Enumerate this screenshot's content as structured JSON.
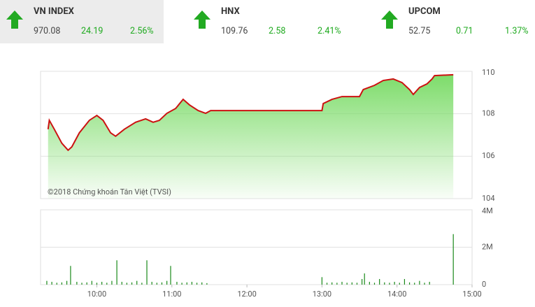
{
  "indices": [
    {
      "name": "VN INDEX",
      "value": "970.08",
      "change": "24.19",
      "percent": "2.56%"
    },
    {
      "name": "HNX",
      "value": "109.76",
      "change": "2.58",
      "percent": "2.41%"
    },
    {
      "name": "UPCOM",
      "value": "52.75",
      "change": "0.71",
      "percent": "1.37%"
    }
  ],
  "chart_data": [
    {
      "type": "line",
      "annotation": "©2018 Chứng khoán Tân Việt (TVSI)",
      "color": "#cc1111",
      "fill": "#7ddc6a",
      "x": [
        561,
        562,
        566,
        572,
        577,
        580,
        586,
        594,
        600,
        605,
        611,
        615,
        622,
        631,
        639,
        645,
        650,
        656,
        663,
        669,
        674,
        681,
        687,
        691,
        780,
        781,
        788,
        796,
        810,
        813,
        822,
        829,
        837,
        844,
        850,
        853,
        858,
        864,
        868,
        870,
        885
      ],
      "values": [
        107.27,
        107.69,
        107.27,
        106.61,
        106.28,
        106.44,
        107.1,
        107.69,
        107.92,
        107.69,
        107.1,
        106.94,
        107.27,
        107.6,
        107.76,
        107.6,
        107.69,
        108.02,
        108.25,
        108.68,
        108.42,
        108.15,
        108.02,
        108.15,
        108.15,
        108.48,
        108.68,
        108.81,
        108.81,
        109.14,
        109.34,
        109.57,
        109.64,
        109.47,
        109.14,
        108.91,
        109.24,
        109.41,
        109.64,
        109.8,
        109.84
      ],
      "xlim": [
        555,
        900
      ],
      "ylim": [
        104,
        110
      ],
      "yticks": [
        104,
        106,
        108,
        110
      ],
      "grid": true
    },
    {
      "type": "bar",
      "color": "#1a8a1a",
      "x": [
        560,
        564,
        568,
        572,
        576,
        579,
        584,
        588,
        592,
        596,
        600,
        604,
        608,
        612,
        616,
        620,
        624,
        628,
        632,
        636,
        640,
        644,
        648,
        652,
        656,
        659,
        664,
        668,
        672,
        676,
        680,
        684,
        688,
        780,
        784,
        788,
        792,
        796,
        800,
        804,
        808,
        812,
        814,
        818,
        822,
        826,
        830,
        834,
        838,
        842,
        846,
        850,
        854,
        858,
        862,
        866,
        885
      ],
      "values": [
        200000,
        150000,
        100000,
        120000,
        200000,
        1000000,
        150000,
        100000,
        120000,
        200000,
        100000,
        150000,
        100000,
        200000,
        1300000,
        150000,
        100000,
        120000,
        200000,
        100000,
        1300000,
        150000,
        100000,
        120000,
        200000,
        1000000,
        150000,
        100000,
        120000,
        150000,
        100000,
        120000,
        80000,
        400000,
        100000,
        120000,
        100000,
        150000,
        100000,
        120000,
        100000,
        300000,
        600000,
        150000,
        100000,
        300000,
        120000,
        100000,
        150000,
        100000,
        300000,
        120000,
        100000,
        200000,
        100000,
        150000,
        2700000
      ],
      "xlim": [
        555,
        900
      ],
      "ylim": [
        0,
        4000000
      ],
      "yticks": [
        0,
        {
          "value": 2000000,
          "label": "2M"
        },
        {
          "value": 4000000,
          "label": "4M"
        }
      ],
      "xticks": [
        {
          "value": 600,
          "label": "10:00"
        },
        {
          "value": 660,
          "label": "11:00"
        },
        {
          "value": 720,
          "label": "12:00"
        },
        {
          "value": 780,
          "label": "13:00"
        },
        {
          "value": 840,
          "label": "14:00"
        },
        {
          "value": 900,
          "label": "15:00"
        }
      ],
      "grid": true
    }
  ]
}
